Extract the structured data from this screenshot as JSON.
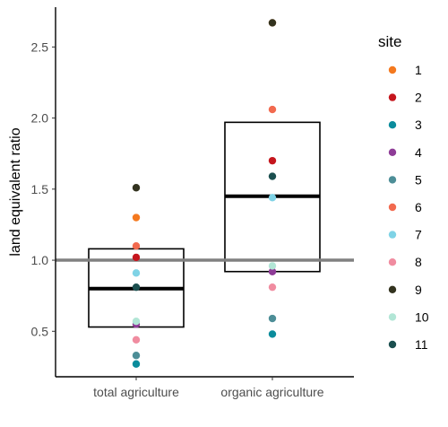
{
  "chart_data": {
    "type": "scatter",
    "subtype": "boxplot-with-points",
    "title": "",
    "xlabel": "",
    "ylabel": "land equivalent ratio",
    "ylim": [
      0.18,
      2.78
    ],
    "yticks": [
      0.5,
      1.0,
      1.5,
      2.0,
      2.5
    ],
    "ytick_labels": [
      "0.5",
      "1.0",
      "1.5",
      "2.0",
      "2.5"
    ],
    "categories": [
      "total agriculture",
      "organic agriculture"
    ],
    "reference_line": {
      "y": 1.0,
      "color": "#808080"
    },
    "grid": false,
    "legend": {
      "title": "site",
      "position": "right"
    },
    "boxes": [
      {
        "category": "total agriculture",
        "q1": 0.53,
        "median": 0.8,
        "q3": 1.08
      },
      {
        "category": "organic agriculture",
        "q1": 0.92,
        "median": 1.45,
        "q3": 1.97
      }
    ],
    "series": [
      {
        "name": "1",
        "color": "#F4791F",
        "values": [
          1.3,
          2.67
        ]
      },
      {
        "name": "2",
        "color": "#C5161D",
        "values": [
          1.02,
          1.7
        ]
      },
      {
        "name": "3",
        "color": "#0B8C9C",
        "values": [
          0.27,
          0.48
        ]
      },
      {
        "name": "4",
        "color": "#8E3C97",
        "values": [
          0.55,
          0.92
        ]
      },
      {
        "name": "5",
        "color": "#4D8E97",
        "values": [
          0.33,
          0.59
        ]
      },
      {
        "name": "6",
        "color": "#F26A4F",
        "values": [
          1.1,
          2.06
        ]
      },
      {
        "name": "7",
        "color": "#7FD3E6",
        "values": [
          0.91,
          1.44
        ]
      },
      {
        "name": "8",
        "color": "#F08CA0",
        "values": [
          0.44,
          0.81
        ]
      },
      {
        "name": "9",
        "color": "#33331F",
        "values": [
          1.51,
          2.67
        ]
      },
      {
        "name": "10",
        "color": "#B2E6D6",
        "values": [
          0.57,
          0.96
        ]
      },
      {
        "name": "11",
        "color": "#1B4F4F",
        "values": [
          0.81,
          1.59
        ]
      }
    ]
  }
}
